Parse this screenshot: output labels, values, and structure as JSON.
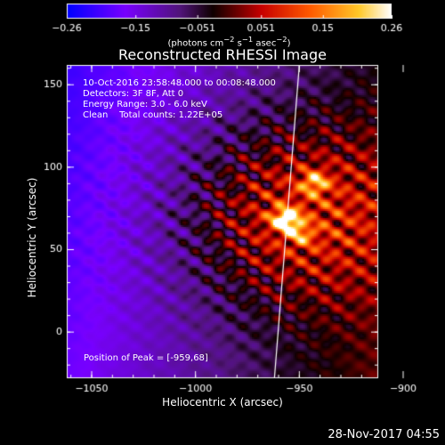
{
  "chart_data": {
    "type": "heatmap",
    "title": "Reconstructed RHESSI Image",
    "xlabel": "Heliocentric X (arcsec)",
    "ylabel": "Heliocentric Y (arcsec)",
    "xlim": [
      -1062,
      -912
    ],
    "ylim": [
      -28,
      162
    ],
    "x_ticks": [
      -1050,
      -1000,
      -950,
      -900
    ],
    "x_tick_labels": [
      "−1050",
      "−1000",
      "−950",
      "−900"
    ],
    "y_ticks": [
      0,
      50,
      100,
      150
    ],
    "y_tick_labels": [
      "0",
      "50",
      "100",
      "150"
    ],
    "colorbar": {
      "min": -0.26,
      "max": 0.26,
      "ticks": [
        -0.26,
        -0.15,
        -0.051,
        0.051,
        0.15,
        0.26
      ],
      "tick_labels": [
        "−0.26",
        "−0.15",
        "−0.051",
        "0.051",
        "0.15",
        "0.26"
      ],
      "unit_main": "(photons cm",
      "unit_exp1": "−2",
      "unit_mid": " s",
      "unit_exp2": "−1",
      "unit_end": " asec",
      "unit_exp3": "−2",
      "unit_close": ")"
    },
    "sources": [
      {
        "x": -957,
        "y": 69,
        "amp": 0.26
      },
      {
        "x": -943,
        "y": 91,
        "amp": 0.17
      },
      {
        "x": -950,
        "y": 60,
        "amp": 0.12
      }
    ],
    "peak": {
      "x": -959,
      "y": 68
    },
    "limb": {
      "x_bottom": -962,
      "x_top": -950
    },
    "grid": false
  },
  "info": {
    "line1": "10-Oct-2016 23:58:48.000 to 00:08:48.000",
    "line2": "Detectors: 3F 8F, Att 0",
    "line3": "Energy Range: 3.0 - 6.0 keV",
    "line4": "Clean    Total counts: 1.22E+05"
  },
  "peak_text": "Position of Peak = [-959,68]",
  "footer_date": "28-Nov-2017 04:55"
}
